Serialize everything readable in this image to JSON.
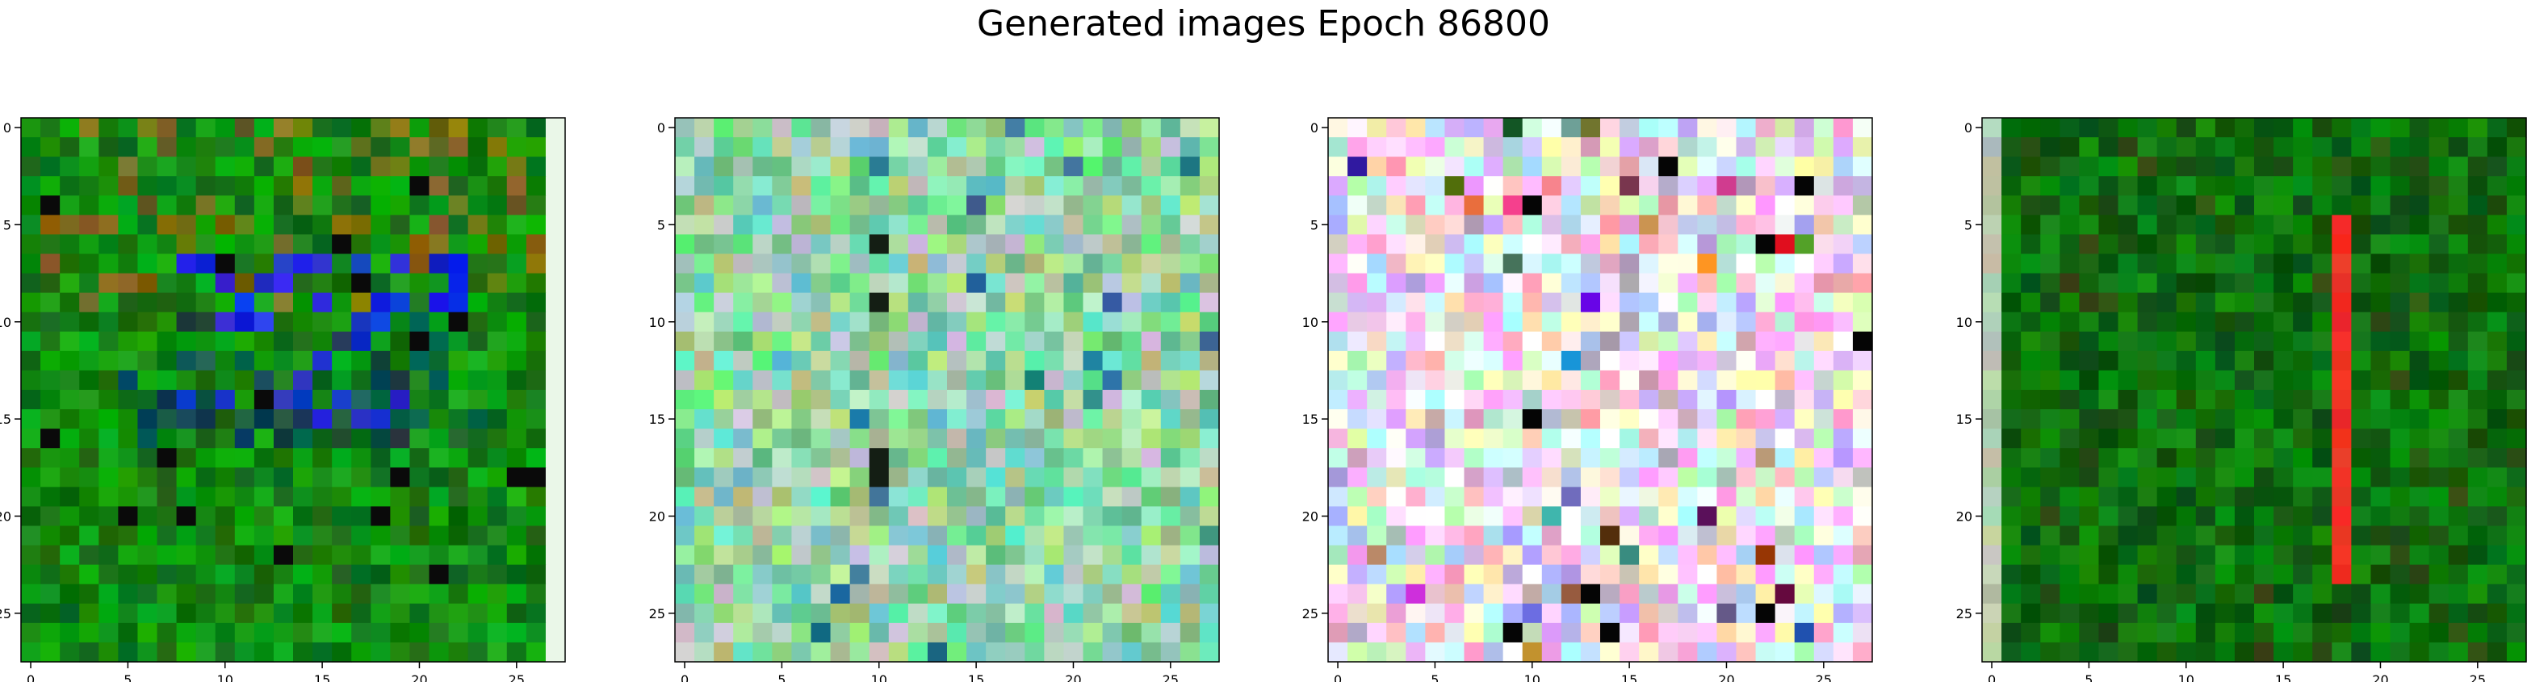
{
  "figure": {
    "title": "Generated images Epoch 86800"
  },
  "chart_data": [
    {
      "type": "heatmap",
      "image_size": 28,
      "xticks": [
        0,
        5,
        10,
        15,
        20,
        25
      ],
      "yticks": [
        0,
        5,
        10,
        15,
        20,
        25
      ],
      "xlim": [
        -0.5,
        27.5
      ],
      "ylim": [
        27.5,
        -0.5
      ],
      "palette": "green-dominant noise",
      "base_color": "#138a12",
      "patches": [
        {
          "label": "olive-brown",
          "rows": [
            0,
            9
          ],
          "cols": [
            1,
            26
          ],
          "color": "#7a6a16"
        },
        {
          "label": "blue",
          "rows": [
            7,
            15
          ],
          "cols": [
            8,
            22
          ],
          "color": "#1f2fd6"
        },
        {
          "label": "dark-teal",
          "rows": [
            10,
            16
          ],
          "cols": [
            5,
            23
          ],
          "color": "#0c4f4a"
        }
      ],
      "right_edge_column_color": "#eaf7e8"
    },
    {
      "type": "heatmap",
      "image_size": 28,
      "xticks": [
        0,
        5,
        10,
        15,
        20,
        25
      ],
      "yticks": [
        0,
        5,
        10,
        15,
        20,
        25
      ],
      "xlim": [
        -0.5,
        27.5
      ],
      "ylim": [
        27.5,
        -0.5
      ],
      "palette": "mint-green pastel noise",
      "base_color": "#8fd4a3"
    },
    {
      "type": "heatmap",
      "image_size": 28,
      "xticks": [
        0,
        5,
        10,
        15,
        20,
        25
      ],
      "yticks": [
        0,
        5,
        10,
        15,
        20,
        25
      ],
      "xlim": [
        -0.5,
        27.5
      ],
      "ylim": [
        27.5,
        -0.5
      ],
      "palette": "multicolor pastel noise",
      "base_color": "#e9dbe8"
    },
    {
      "type": "heatmap",
      "image_size": 28,
      "xticks": [
        0,
        5,
        10,
        15,
        20,
        25
      ],
      "yticks": [
        0,
        5,
        10,
        15,
        20,
        25
      ],
      "xlim": [
        -0.5,
        27.5
      ],
      "ylim": [
        27.5,
        -0.5
      ],
      "palette": "dark-green noise",
      "base_color": "#0f6f0f",
      "red_stripe_column": 18,
      "red_stripe_rows": [
        5,
        23
      ],
      "red_stripe_color": "#ef3322",
      "left_edge_column_color": "#b8c9b0"
    }
  ]
}
